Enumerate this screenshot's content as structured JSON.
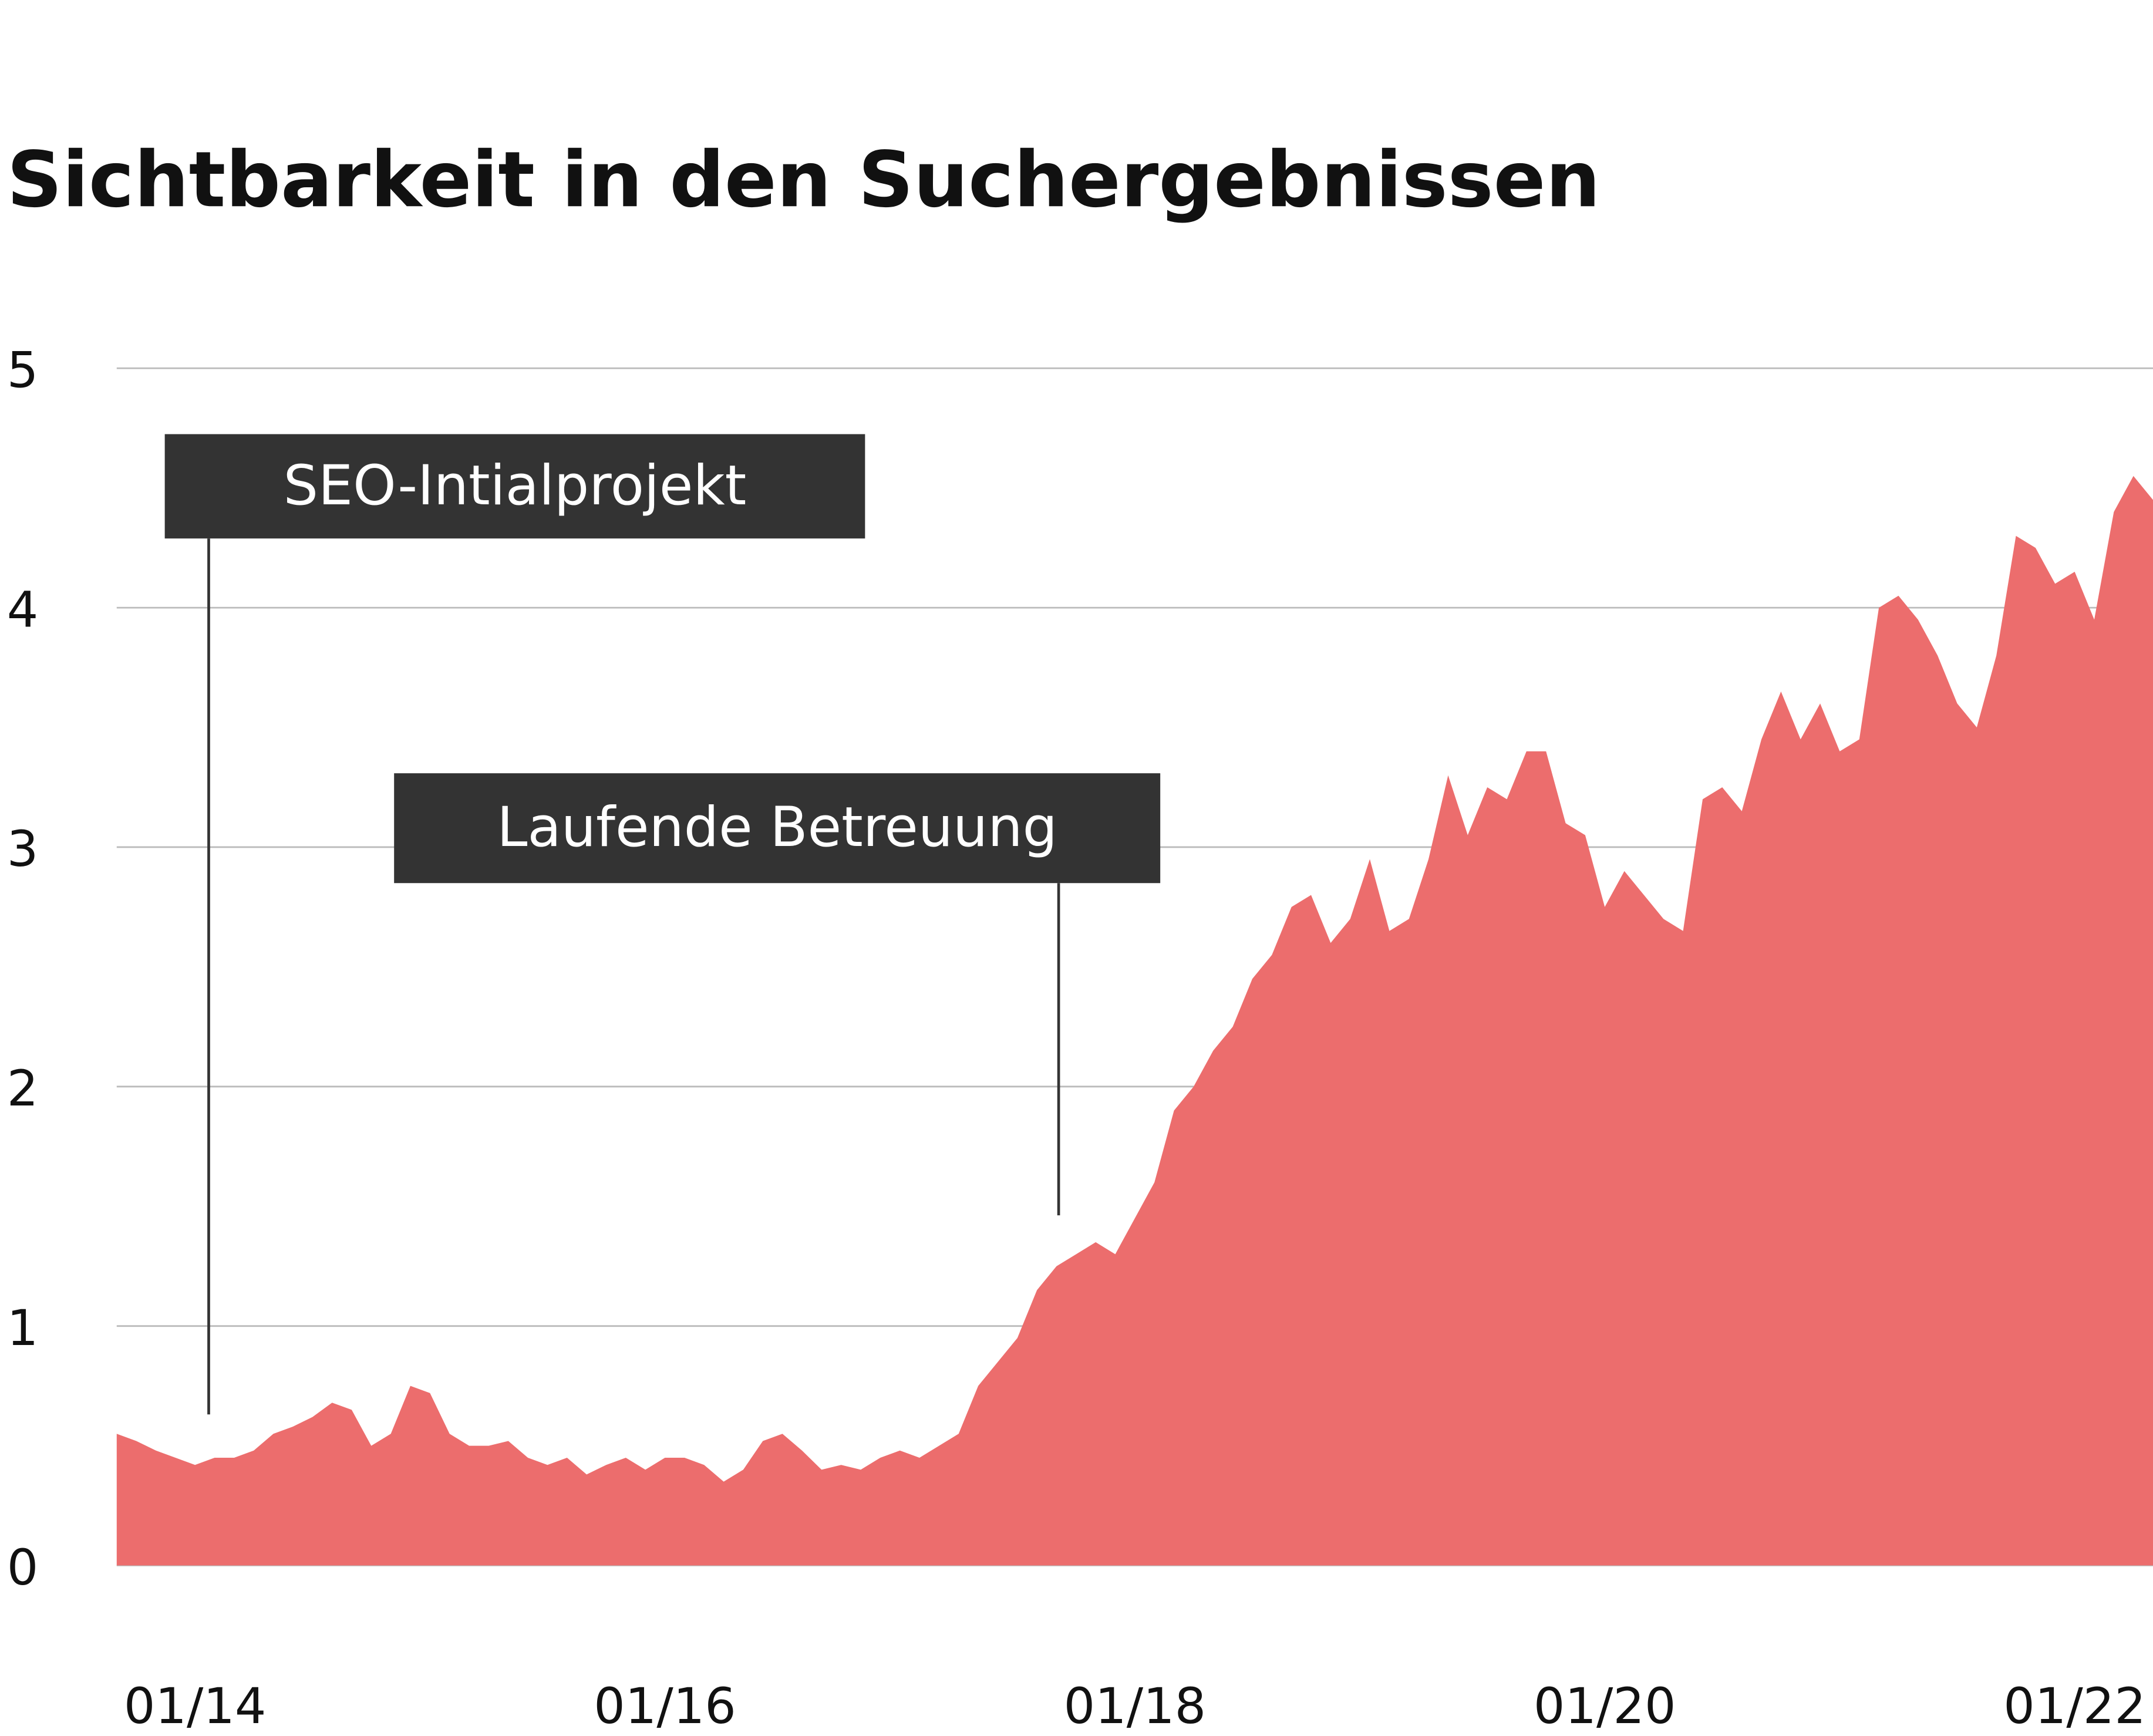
{
  "chart_data": {
    "type": "area",
    "title": "Sichtbarkeit in den Suchergebnissen",
    "color": "#ec6d6d",
    "grid": true,
    "x": [
      "09/13",
      "10/13",
      "11/13",
      "12/13",
      "01/14",
      "02/14",
      "03/14",
      "04/14",
      "05/14",
      "06/14",
      "07/14",
      "08/14",
      "09/14",
      "10/14",
      "11/14",
      "12/14",
      "01/15",
      "02/15",
      "03/15",
      "04/15",
      "05/15",
      "06/15",
      "07/15",
      "08/15",
      "09/15",
      "10/15",
      "11/15",
      "12/15",
      "01/16",
      "02/16",
      "03/16",
      "04/16",
      "05/16",
      "06/16",
      "07/16",
      "08/16",
      "09/16",
      "10/16",
      "11/16",
      "12/16",
      "01/17",
      "02/17",
      "03/17",
      "04/17",
      "05/17",
      "06/17",
      "07/17",
      "08/17",
      "09/17",
      "10/17",
      "11/17",
      "12/17",
      "01/18",
      "02/18",
      "03/18",
      "04/18",
      "05/18",
      "06/18",
      "07/18",
      "08/18",
      "09/18",
      "10/18",
      "11/18",
      "12/18",
      "01/19",
      "02/19",
      "03/19",
      "04/19",
      "05/19",
      "06/19",
      "07/19",
      "08/19",
      "09/19",
      "10/19",
      "11/19",
      "12/19",
      "01/20",
      "02/20",
      "03/20",
      "04/20",
      "05/20",
      "06/20",
      "07/20",
      "08/20",
      "09/20",
      "10/20",
      "11/20",
      "12/20",
      "01/21",
      "02/21",
      "03/21",
      "04/21",
      "05/21",
      "06/21",
      "07/21",
      "08/21",
      "09/21",
      "10/21",
      "11/21",
      "12/21",
      "01/22",
      "02/22",
      "03/22",
      "04/22",
      "05/22"
    ],
    "values": [
      0.55,
      0.52,
      0.48,
      0.45,
      0.42,
      0.45,
      0.45,
      0.48,
      0.55,
      0.58,
      0.62,
      0.68,
      0.65,
      0.5,
      0.55,
      0.75,
      0.72,
      0.55,
      0.5,
      0.5,
      0.52,
      0.45,
      0.42,
      0.45,
      0.38,
      0.42,
      0.45,
      0.4,
      0.45,
      0.45,
      0.42,
      0.35,
      0.4,
      0.52,
      0.55,
      0.48,
      0.4,
      0.42,
      0.4,
      0.45,
      0.48,
      0.45,
      0.5,
      0.55,
      0.75,
      0.85,
      0.95,
      1.15,
      1.25,
      1.3,
      1.35,
      1.3,
      1.45,
      1.6,
      1.9,
      2.0,
      2.15,
      2.25,
      2.45,
      2.55,
      2.75,
      2.8,
      2.6,
      2.7,
      2.95,
      2.65,
      2.7,
      2.95,
      3.3,
      3.05,
      3.25,
      3.2,
      3.4,
      3.4,
      3.1,
      3.05,
      2.75,
      2.9,
      2.8,
      2.7,
      2.65,
      3.2,
      3.25,
      3.15,
      3.45,
      3.65,
      3.45,
      3.6,
      3.4,
      3.45,
      4.0,
      4.05,
      3.95,
      3.8,
      3.6,
      3.5,
      3.8,
      4.3,
      4.25,
      4.1,
      4.15,
      3.95,
      4.4,
      4.55,
      4.45
    ],
    "xlim": [
      "09/13",
      "05/22"
    ],
    "xticks": [
      "01/14",
      "01/16",
      "01/18",
      "01/20",
      "01/22"
    ],
    "ylim": [
      0,
      5
    ],
    "yticks": [
      0,
      1,
      2,
      3,
      4,
      5
    ],
    "annotations": [
      {
        "text": "SEO-Intialprojekt"
      },
      {
        "text": "Laufende Betreuung"
      }
    ]
  }
}
